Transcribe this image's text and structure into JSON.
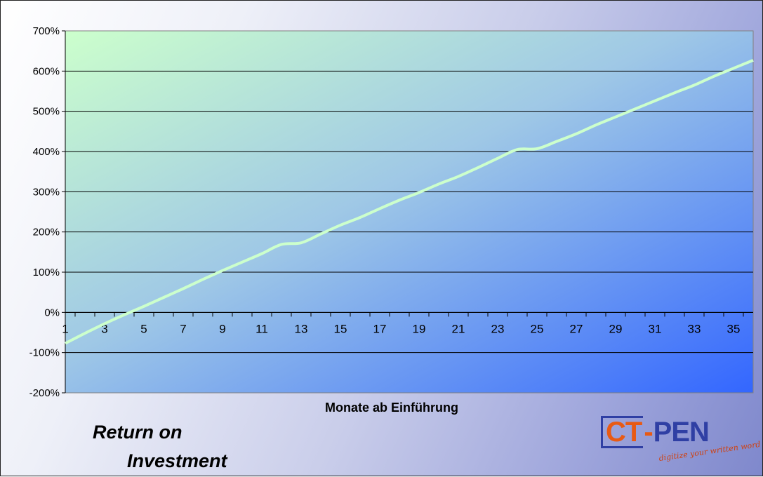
{
  "chart_data": {
    "type": "line",
    "title": "",
    "xlabel": "Monate ab Einführung",
    "ylabel": "",
    "x": [
      1,
      2,
      3,
      4,
      5,
      6,
      7,
      8,
      9,
      10,
      11,
      12,
      13,
      14,
      15,
      16,
      17,
      18,
      19,
      20,
      21,
      22,
      23,
      24,
      25,
      26,
      27,
      28,
      29,
      30,
      31,
      32,
      33,
      34,
      35,
      36
    ],
    "x_tick_labels": [
      "1",
      "3",
      "5",
      "7",
      "9",
      "11",
      "13",
      "15",
      "17",
      "19",
      "21",
      "23",
      "25",
      "27",
      "29",
      "31",
      "33",
      "35"
    ],
    "y_tick_labels": [
      "700%",
      "600%",
      "500%",
      "400%",
      "300%",
      "200%",
      "100%",
      "0%",
      "-100%",
      "-200%"
    ],
    "ylim": [
      -200,
      700
    ],
    "series": [
      {
        "values": [
          -77,
          -52,
          -28,
          -6,
          15,
          37,
          59,
          82,
          104,
          125,
          146,
          169,
          173,
          195,
          217,
          236,
          258,
          279,
          298,
          319,
          338,
          360,
          383,
          405,
          407,
          425,
          444,
          466,
          486,
          506,
          526,
          546,
          565,
          587,
          607,
          627
        ],
        "color": "#ccffcc"
      }
    ],
    "grid": true
  },
  "captions": {
    "line1": "Return on",
    "line2": "Investment"
  },
  "logo": {
    "ct": "CT",
    "dash": "-",
    "pen": "PEN",
    "tagline": "digitize your written word"
  }
}
